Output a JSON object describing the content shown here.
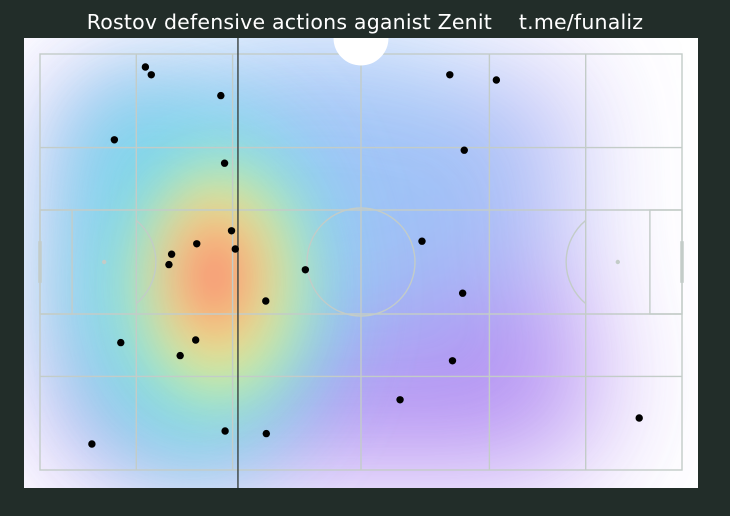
{
  "title": "Rostov defensive actions aganist Zenit",
  "handle": "t.me/funaliz",
  "colors": {
    "background": "#222d29",
    "pitch": "#ffffff",
    "lines": "#c3ccc8",
    "marker": "#000000",
    "divider": "#3b4240"
  },
  "chart_data": {
    "type": "scatter",
    "title": "Rostov defensive actions aganist Zenit",
    "subtitle": "t.me/funaliz",
    "xlabel": "",
    "ylabel": "",
    "xlim": [
      0,
      120
    ],
    "ylim": [
      0,
      80
    ],
    "grid": true,
    "density_overlay": true,
    "colormap": "rainbow",
    "vertical_marker_x": 37,
    "points": [
      {
        "x": 19.7,
        "y": 2.5
      },
      {
        "x": 20.8,
        "y": 4.0
      },
      {
        "x": 33.8,
        "y": 8.0
      },
      {
        "x": 13.9,
        "y": 16.5
      },
      {
        "x": 34.5,
        "y": 21.0
      },
      {
        "x": 35.8,
        "y": 34.0
      },
      {
        "x": 29.3,
        "y": 36.5
      },
      {
        "x": 36.5,
        "y": 37.5
      },
      {
        "x": 24.6,
        "y": 38.5
      },
      {
        "x": 24.1,
        "y": 40.5
      },
      {
        "x": 49.6,
        "y": 41.5
      },
      {
        "x": 42.2,
        "y": 47.5
      },
      {
        "x": 15.1,
        "y": 55.5
      },
      {
        "x": 29.1,
        "y": 55.0
      },
      {
        "x": 26.2,
        "y": 58.0
      },
      {
        "x": 9.7,
        "y": 75.0
      },
      {
        "x": 34.6,
        "y": 72.5
      },
      {
        "x": 42.3,
        "y": 73.0
      },
      {
        "x": 76.6,
        "y": 4.0
      },
      {
        "x": 85.3,
        "y": 5.0
      },
      {
        "x": 79.3,
        "y": 18.5
      },
      {
        "x": 71.4,
        "y": 36.0
      },
      {
        "x": 79.0,
        "y": 46.0
      },
      {
        "x": 77.1,
        "y": 59.0
      },
      {
        "x": 67.3,
        "y": 66.5
      },
      {
        "x": 112.0,
        "y": 70.0
      }
    ]
  }
}
